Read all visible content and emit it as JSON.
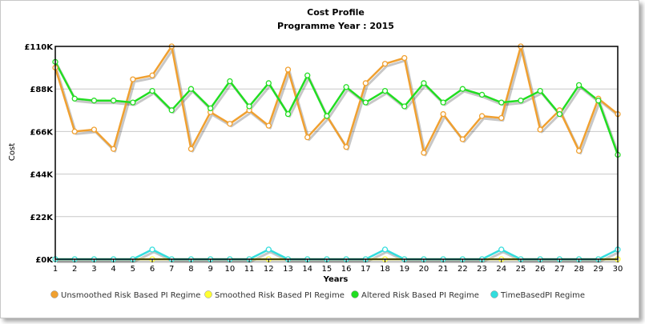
{
  "chart_data": {
    "type": "line",
    "title": "Cost Profile",
    "subtitle": "Programme Year : 2015",
    "xlabel": "Years",
    "ylabel": "Cost",
    "ylim": [
      0,
      110000
    ],
    "yticks": [
      {
        "value": 0,
        "label": "£0K"
      },
      {
        "value": 22000,
        "label": "£22K"
      },
      {
        "value": 44000,
        "label": "£44K"
      },
      {
        "value": 66000,
        "label": "£66K"
      },
      {
        "value": 88000,
        "label": "£88K"
      },
      {
        "value": 110000,
        "label": "£110K"
      }
    ],
    "x": [
      1,
      2,
      3,
      4,
      5,
      6,
      7,
      8,
      9,
      10,
      11,
      12,
      13,
      14,
      15,
      16,
      17,
      18,
      19,
      20,
      21,
      22,
      23,
      24,
      25,
      26,
      27,
      28,
      29,
      30
    ],
    "grid": "horizontal",
    "legend_position": "bottom",
    "series": [
      {
        "name": "Unsmoothed Risk Based PI Regime",
        "color": "#f0a030",
        "values": [
          99000,
          66000,
          67000,
          57000,
          93000,
          95000,
          110000,
          57000,
          76000,
          70000,
          77000,
          69000,
          98000,
          63000,
          74000,
          58000,
          91000,
          101000,
          104000,
          55000,
          75000,
          62000,
          74000,
          73000,
          110000,
          67000,
          77000,
          56000,
          83000,
          75000
        ]
      },
      {
        "name": "Smoothed Risk Based PI Regime",
        "color": "#ffff33",
        "values": [
          0,
          0,
          0,
          0,
          0,
          0,
          0,
          0,
          0,
          0,
          0,
          0,
          0,
          0,
          0,
          0,
          0,
          0,
          0,
          0,
          0,
          0,
          0,
          0,
          0,
          0,
          0,
          0,
          0,
          0
        ]
      },
      {
        "name": "Altered Risk Based PI Regime",
        "color": "#22dd22",
        "values": [
          102000,
          83000,
          82000,
          82000,
          81000,
          87000,
          77000,
          88000,
          78000,
          92000,
          79000,
          91000,
          75000,
          95000,
          74000,
          89000,
          81000,
          87000,
          79000,
          91000,
          81000,
          88000,
          85000,
          81000,
          82000,
          87000,
          75000,
          90000,
          82000,
          54000
        ]
      },
      {
        "name": "TimeBasedPI Regime",
        "color": "#33dddd",
        "values": [
          0,
          0,
          0,
          0,
          0,
          5000,
          0,
          0,
          0,
          0,
          0,
          5000,
          0,
          0,
          0,
          0,
          0,
          5000,
          0,
          0,
          0,
          0,
          0,
          5000,
          0,
          0,
          0,
          0,
          0,
          5000
        ]
      }
    ]
  }
}
